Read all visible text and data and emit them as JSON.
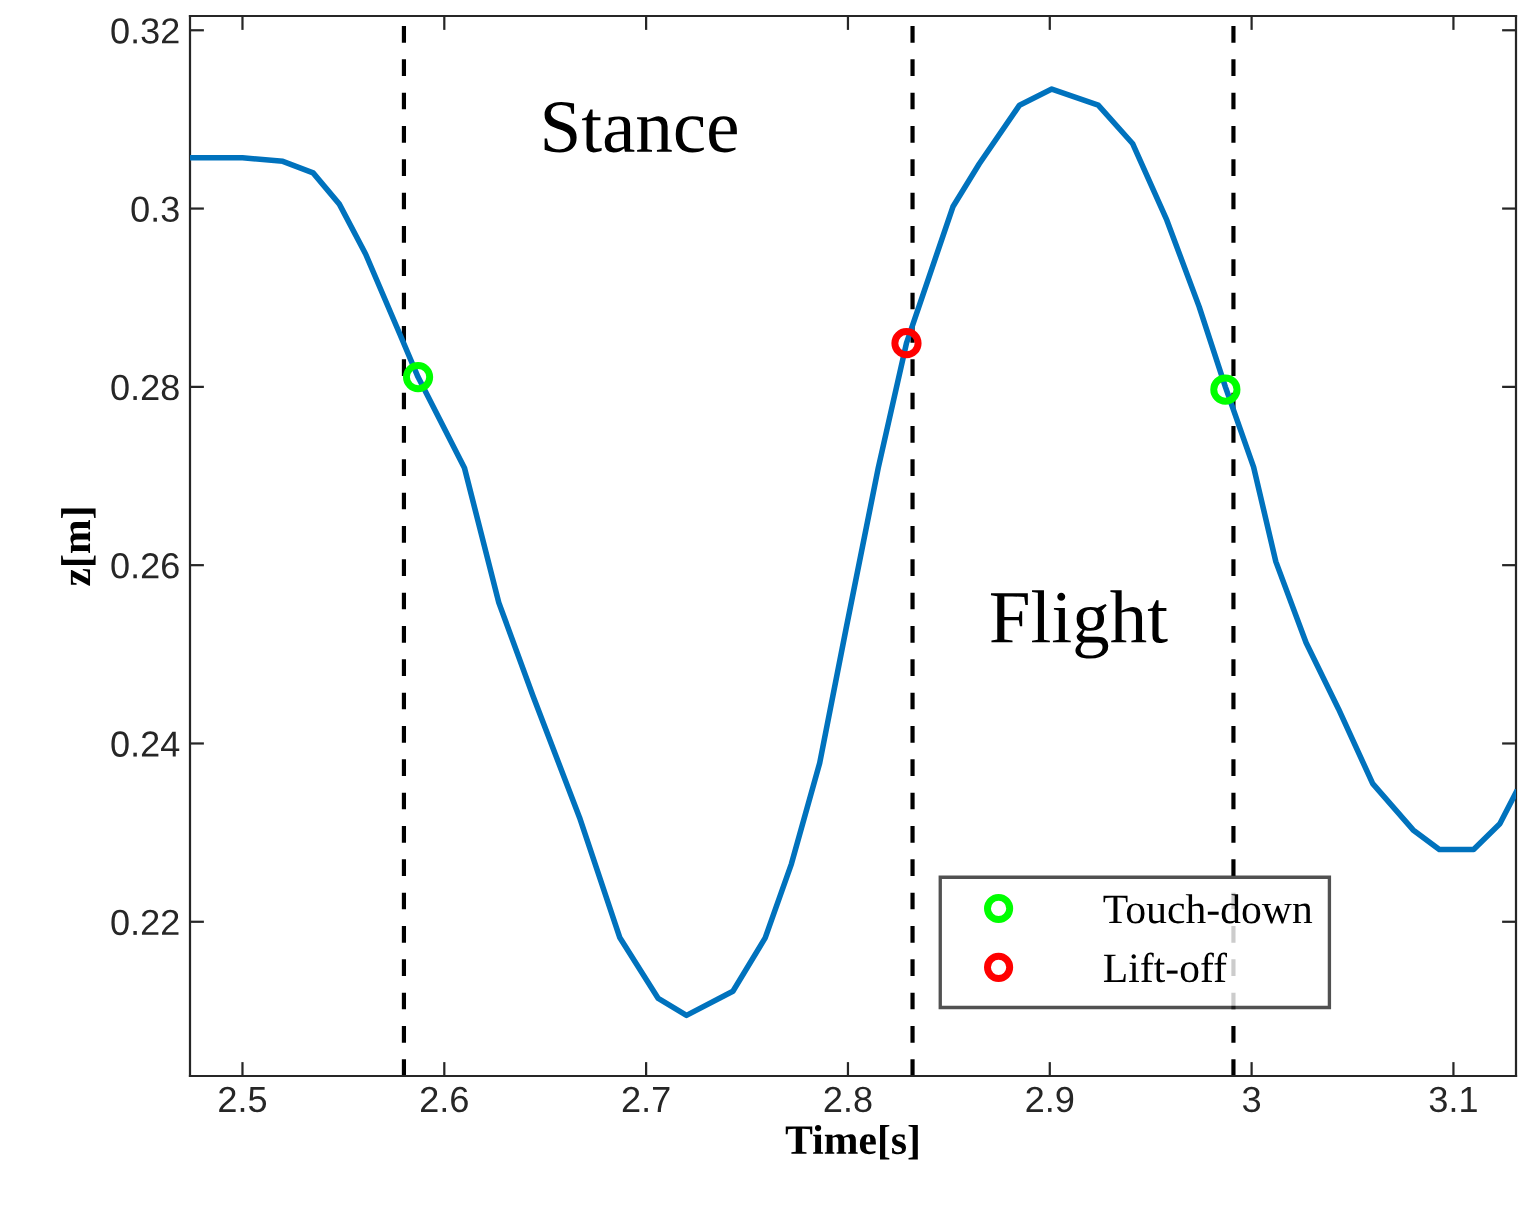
{
  "chart_data": {
    "type": "line",
    "xlabel": "Time[s]",
    "ylabel": "z[m]",
    "xlim": [
      2.474,
      3.131
    ],
    "ylim": [
      0.2027,
      0.3216
    ],
    "xticks": [
      2.5,
      2.6,
      2.7,
      2.8,
      2.9,
      3,
      3.1
    ],
    "yticks": [
      0.22,
      0.24,
      0.26,
      0.28,
      0.3,
      0.32
    ],
    "grid": false,
    "legend": "bottom right",
    "series": [
      {
        "color": "#0072bd",
        "marker": "none",
        "x": [
          2.474,
          2.5,
          2.52,
          2.535,
          2.548,
          2.561,
          2.578,
          2.587,
          2.61,
          2.627,
          2.644,
          2.667,
          2.687,
          2.706,
          2.72,
          2.743,
          2.759,
          2.772,
          2.786,
          2.799,
          2.815,
          2.829,
          2.852,
          2.865,
          2.885,
          2.901,
          2.924,
          2.941,
          2.958,
          2.974,
          2.987,
          3.001,
          3.012,
          3.027,
          3.043,
          3.06,
          3.08,
          3.093,
          3.11,
          3.123,
          3.131
        ],
        "values": [
          0.3057,
          0.3057,
          0.3053,
          0.304,
          0.3005,
          0.2949,
          0.2859,
          0.2811,
          0.2709,
          0.2558,
          0.2453,
          0.2317,
          0.2182,
          0.2114,
          0.2095,
          0.2122,
          0.2182,
          0.2265,
          0.2378,
          0.2528,
          0.2709,
          0.2849,
          0.3002,
          0.305,
          0.3116,
          0.3134,
          0.3116,
          0.3073,
          0.2987,
          0.289,
          0.28,
          0.271,
          0.2604,
          0.2513,
          0.2439,
          0.2355,
          0.2303,
          0.2281,
          0.2281,
          0.231,
          0.2345
        ]
      },
      {
        "type": "scatter",
        "name": "Touch-down",
        "color": "#00ff00",
        "marker": "circle",
        "x": [
          2.587,
          2.987
        ],
        "values": [
          0.2811,
          0.2797
        ]
      },
      {
        "type": "scatter",
        "name": "Lift-off",
        "color": "#ff0000",
        "marker": "circle",
        "x": [
          2.829
        ],
        "values": [
          0.2849
        ]
      }
    ],
    "ref_lines": [
      {
        "axis": "x",
        "value": 2.58,
        "color": "#000000",
        "line_style": "dashed"
      },
      {
        "axis": "x",
        "value": 2.832,
        "color": "#000000",
        "line_style": "dashed"
      },
      {
        "axis": "x",
        "value": 2.991,
        "color": "#000000",
        "line_style": "dashed"
      }
    ],
    "annotations": [
      "Stance",
      "Flight"
    ]
  }
}
